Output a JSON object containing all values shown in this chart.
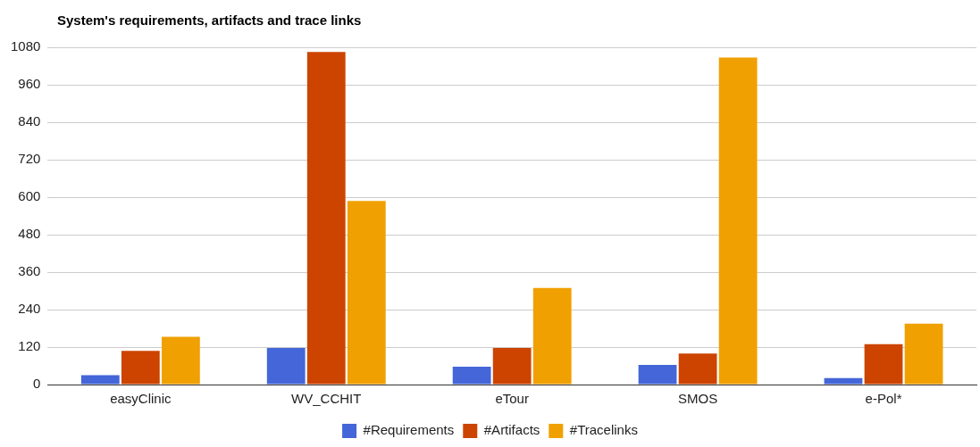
{
  "chart_data": {
    "type": "bar",
    "title": "System's requirements, artifacts and trace links",
    "categories": [
      "easyClinic",
      "WV_CCHIT",
      "eTour",
      "SMOS",
      "e-Pol*"
    ],
    "series": [
      {
        "name": "#Requirements",
        "color": "#4466d8",
        "values": [
          30,
          117,
          57,
          63,
          21
        ]
      },
      {
        "name": "#Artifacts",
        "color": "#cc4400",
        "values": [
          108,
          1065,
          117,
          99,
          129
        ]
      },
      {
        "name": "#Tracelinks",
        "color": "#f0a000",
        "values": [
          153,
          588,
          309,
          1047,
          195
        ]
      }
    ],
    "ylim": [
      0,
      1080
    ],
    "yticks": [
      0,
      120,
      240,
      360,
      480,
      600,
      720,
      840,
      960,
      1080
    ],
    "grid": "y",
    "legend": "bottom"
  }
}
